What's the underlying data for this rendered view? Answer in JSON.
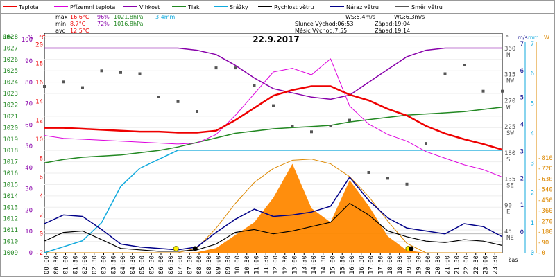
{
  "chart_data": {
    "type": "line",
    "title": "22.9.2017",
    "legend": [
      {
        "name": "Teplota",
        "color": "#ee0000"
      },
      {
        "name": "Přízemní teplota",
        "color": "#dd00dd"
      },
      {
        "name": "Vlhkost",
        "color": "#8800aa"
      },
      {
        "name": "Tlak",
        "color": "#228822"
      },
      {
        "name": "Srážky",
        "color": "#11aadd"
      },
      {
        "name": "Rychlost větru",
        "color": "#000000"
      },
      {
        "name": "Náraz větru",
        "color": "#000088"
      },
      {
        "name": "Směr větru",
        "color": "#555555"
      }
    ],
    "stats": {
      "row1": {
        "label": "max",
        "temp": "16.6°C",
        "hum": "96%",
        "press": "1021.8hPa",
        "rain": "3.4mm"
      },
      "row2": {
        "label": "min",
        "temp": "8.7°C",
        "hum": "72%",
        "press": "1016.8hPa"
      },
      "row3": {
        "label": "avg",
        "temp": "12.5°C"
      }
    },
    "info": {
      "ws": "WS:5.4m/s",
      "wg": "WG:6.3m/s",
      "sun_rise": "Slunce Východ:06:53",
      "sun_set": "Západ:19:04",
      "moon_rise": "Měsíc Východ:7:55",
      "moon_set": "Západ:19:14"
    },
    "axes": {
      "hpa_title": "hPa",
      "pct_title": "%",
      "c_title": "°C",
      "deg_title": "°",
      "ms_title": "m/s",
      "mm_title": "mm",
      "w_title": "W",
      "x_unit": "čas",
      "hpa_ticks": [
        "1028",
        "1027",
        "1026",
        "1025",
        "1024",
        "1023",
        "1022",
        "1021",
        "1020",
        "1019",
        "1018",
        "1017",
        "1016",
        "1015",
        "1014",
        "1013",
        "1012",
        "1011",
        "1010",
        "1009"
      ],
      "pct_ticks": [
        "100",
        "90",
        "80",
        "70",
        "60",
        "50",
        "40",
        "30",
        "20",
        "10",
        "0"
      ],
      "c_ticks": [
        "20",
        "18",
        "16",
        "14",
        "12",
        "10",
        "8",
        "6",
        "4",
        "2",
        "0",
        "-2"
      ],
      "dir_ticks": [
        {
          "deg": "360",
          "dir": "N"
        },
        {
          "deg": "315",
          "dir": "NW"
        },
        {
          "deg": "270",
          "dir": "W"
        },
        {
          "deg": "225",
          "dir": "SW"
        },
        {
          "deg": "180",
          "dir": "S"
        },
        {
          "deg": "135",
          "dir": "SE"
        },
        {
          "deg": "90",
          "dir": "E"
        },
        {
          "deg": "45",
          "dir": "NE"
        }
      ],
      "ms_ticks": [
        "7",
        "6",
        "5",
        "4",
        "3",
        "2",
        "1",
        "0"
      ],
      "mm_ticks": [
        "7",
        "6",
        "5",
        "4",
        "3",
        "2",
        "1",
        "0"
      ],
      "w_ticks": [
        "810",
        "720",
        "630",
        "540",
        "450",
        "360",
        "270",
        "180",
        "90",
        "0"
      ],
      "x_ticks": [
        "00:00",
        "00:30",
        "01:00",
        "01:30",
        "02:00",
        "02:30",
        "03:00",
        "03:30",
        "04:00",
        "04:30",
        "05:00",
        "05:30",
        "06:00",
        "06:30",
        "07:00",
        "07:30",
        "08:00",
        "08:30",
        "09:00",
        "09:30",
        "10:00",
        "10:30",
        "11:00",
        "11:30",
        "12:00",
        "12:30",
        "13:00",
        "13:30",
        "14:00",
        "14:30",
        "15:00",
        "15:30",
        "16:00",
        "16:30",
        "17:00",
        "17:30",
        "18:00",
        "18:30",
        "19:00",
        "19:30",
        "20:00",
        "20:30",
        "21:00",
        "21:30",
        "22:00",
        "22:30",
        "23:00",
        "23:30"
      ]
    },
    "x_hours": [
      0,
      1,
      2,
      3,
      4,
      5,
      6,
      7,
      8,
      9,
      10,
      11,
      12,
      13,
      14,
      15,
      16,
      17,
      18,
      19,
      20,
      21,
      22,
      23,
      24
    ],
    "temperature_c": [
      11.2,
      11.2,
      11.1,
      11.0,
      10.9,
      10.8,
      10.8,
      10.7,
      10.7,
      10.9,
      12.0,
      13.3,
      14.6,
      15.2,
      15.6,
      15.6,
      14.7,
      14.1,
      13.2,
      12.5,
      11.4,
      10.6,
      10.0,
      9.5,
      8.9
    ],
    "ground_temperature_c": [
      10.4,
      10.1,
      10.0,
      9.9,
      9.8,
      9.7,
      9.6,
      9.5,
      9.6,
      10.5,
      12.5,
      14.8,
      17.1,
      17.5,
      16.8,
      18.5,
      13.5,
      11.6,
      10.5,
      9.8,
      8.7,
      8.0,
      7.3,
      6.8,
      6.0
    ],
    "humidity_pct": [
      96,
      96,
      96,
      96,
      96,
      96,
      96,
      96,
      95,
      93,
      88,
      82,
      77,
      75,
      73,
      72,
      74,
      80,
      86,
      92,
      95,
      96,
      96,
      96,
      96
    ],
    "pressure_hpa": [
      1016.9,
      1017.2,
      1017.4,
      1017.5,
      1017.6,
      1017.8,
      1018.0,
      1018.3,
      1018.7,
      1019.1,
      1019.5,
      1019.7,
      1019.9,
      1020.0,
      1020.1,
      1020.2,
      1020.5,
      1020.7,
      1020.9,
      1021.1,
      1021.2,
      1021.3,
      1021.4,
      1021.6,
      1021.8
    ],
    "rain_mm": [
      0,
      0.2,
      0.4,
      1.0,
      2.2,
      2.8,
      3.1,
      3.4,
      3.4,
      3.4,
      3.4,
      3.4,
      3.4,
      3.4,
      3.4,
      3.4,
      3.4,
      3.4,
      3.4,
      3.4,
      3.4,
      3.4,
      3.4,
      3.4,
      3.4
    ],
    "wind_speed_ms": [
      0.8,
      1.4,
      1.5,
      0.9,
      0.3,
      0.2,
      0.1,
      0.1,
      0.2,
      0.6,
      1.4,
      1.6,
      1.3,
      1.5,
      1.8,
      2.1,
      3.4,
      2.6,
      1.5,
      1.1,
      0.8,
      0.7,
      0.9,
      0.8,
      0.5
    ],
    "wind_gust_ms": [
      2.0,
      2.6,
      2.5,
      1.6,
      0.6,
      0.4,
      0.3,
      0.2,
      0.4,
      1.4,
      2.3,
      3.0,
      2.5,
      2.6,
      2.8,
      3.2,
      5.2,
      3.6,
      2.4,
      1.7,
      1.5,
      1.3,
      2.0,
      1.8,
      1.1
    ],
    "wind_dir_deg": [
      298,
      306,
      296,
      325,
      322,
      320,
      280,
      272,
      255,
      330,
      330,
      300,
      265,
      230,
      220,
      230,
      240,
      150,
      140,
      130,
      200,
      320,
      335,
      290,
      290
    ],
    "solar_w": [
      0,
      0,
      0,
      0,
      0,
      0,
      0,
      0,
      5,
      40,
      150,
      260,
      470,
      760,
      380,
      260,
      620,
      400,
      140,
      20,
      0,
      0,
      0,
      0,
      0
    ],
    "clear_sky_w": [
      0,
      0,
      0,
      0,
      0,
      0,
      0,
      0,
      40,
      210,
      420,
      600,
      720,
      790,
      800,
      760,
      650,
      480,
      270,
      80,
      0,
      0,
      0,
      0,
      0
    ]
  }
}
